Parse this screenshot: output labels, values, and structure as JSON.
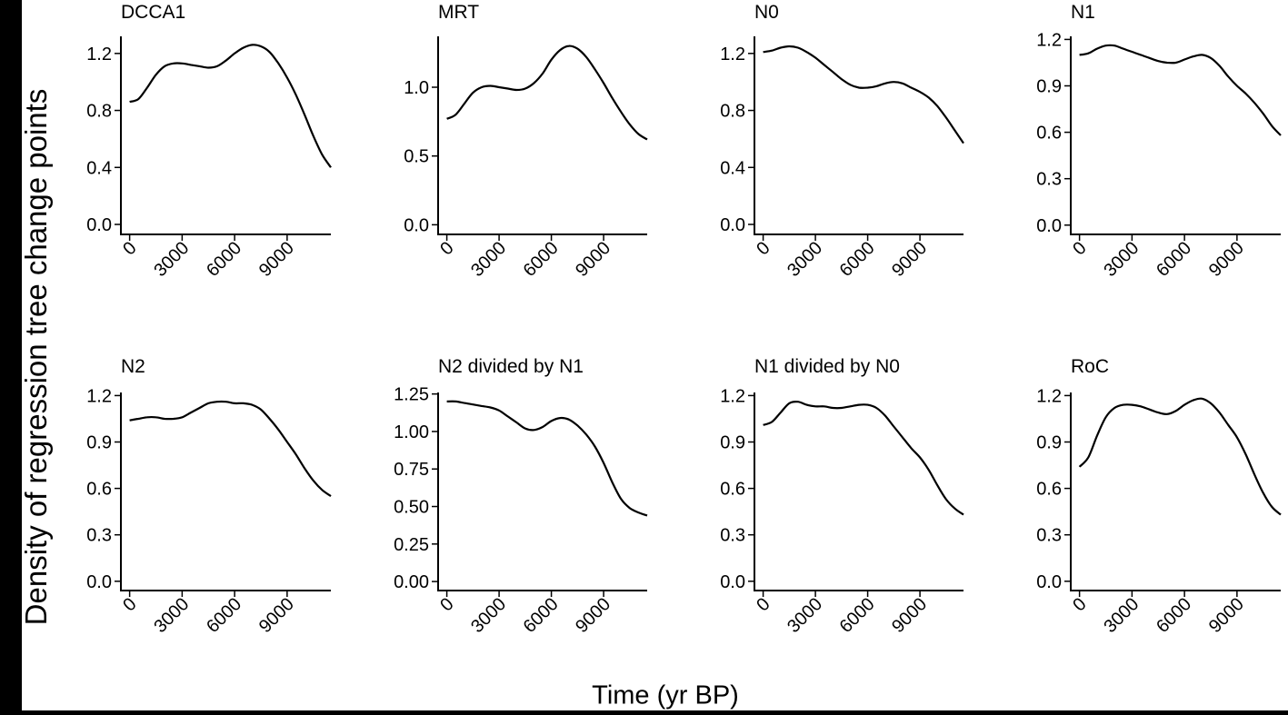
{
  "figure": {
    "ylabel": "Density of regression tree change points",
    "xlabel": "Time (yr BP)"
  },
  "colors": {
    "line": "#000000",
    "background": "#ffffff"
  },
  "chart_data": [
    {
      "type": "line",
      "title": "DCCA1",
      "xlim": [
        -500,
        11500
      ],
      "ylim": [
        -0.07,
        1.32
      ],
      "xticks": [
        0,
        3000,
        6000,
        9000
      ],
      "yticks": [
        0.0,
        0.4,
        0.8,
        1.2
      ],
      "ytick_labels": [
        "0.0",
        "0.4",
        "0.8",
        "1.2"
      ],
      "x": [
        0,
        500,
        1000,
        1500,
        2000,
        2500,
        3000,
        3500,
        4000,
        4500,
        5000,
        5500,
        6000,
        6500,
        7000,
        7500,
        8000,
        8500,
        9000,
        9500,
        10000,
        10500,
        11000,
        11500
      ],
      "y": [
        0.86,
        0.88,
        0.96,
        1.05,
        1.11,
        1.13,
        1.13,
        1.12,
        1.11,
        1.1,
        1.11,
        1.15,
        1.2,
        1.24,
        1.26,
        1.25,
        1.21,
        1.13,
        1.03,
        0.91,
        0.77,
        0.62,
        0.49,
        0.4
      ]
    },
    {
      "type": "line",
      "title": "MRT",
      "xlim": [
        -500,
        11500
      ],
      "ylim": [
        -0.07,
        1.37
      ],
      "xticks": [
        0,
        3000,
        6000,
        9000
      ],
      "yticks": [
        0.0,
        0.5,
        1.0
      ],
      "ytick_labels": [
        "0.0",
        "0.5",
        "1.0"
      ],
      "x": [
        0,
        500,
        1000,
        1500,
        2000,
        2500,
        3000,
        3500,
        4000,
        4500,
        5000,
        5500,
        6000,
        6500,
        7000,
        7500,
        8000,
        8500,
        9000,
        9500,
        10000,
        10500,
        11000,
        11500
      ],
      "y": [
        0.77,
        0.8,
        0.88,
        0.96,
        1.0,
        1.01,
        1.0,
        0.99,
        0.98,
        0.99,
        1.03,
        1.1,
        1.2,
        1.27,
        1.3,
        1.28,
        1.22,
        1.13,
        1.03,
        0.92,
        0.82,
        0.73,
        0.66,
        0.62
      ]
    },
    {
      "type": "line",
      "title": "N0",
      "xlim": [
        -500,
        11500
      ],
      "ylim": [
        -0.07,
        1.32
      ],
      "xticks": [
        0,
        3000,
        6000,
        9000
      ],
      "yticks": [
        0.0,
        0.4,
        0.8,
        1.2
      ],
      "ytick_labels": [
        "0.0",
        "0.4",
        "0.8",
        "1.2"
      ],
      "x": [
        0,
        500,
        1000,
        1500,
        2000,
        2500,
        3000,
        3500,
        4000,
        4500,
        5000,
        5500,
        6000,
        6500,
        7000,
        7500,
        8000,
        8500,
        9000,
        9500,
        10000,
        10500,
        11000,
        11500
      ],
      "y": [
        1.21,
        1.22,
        1.24,
        1.25,
        1.24,
        1.21,
        1.17,
        1.12,
        1.07,
        1.02,
        0.98,
        0.96,
        0.96,
        0.97,
        0.99,
        1.0,
        0.99,
        0.96,
        0.93,
        0.89,
        0.83,
        0.75,
        0.66,
        0.57
      ]
    },
    {
      "type": "line",
      "title": "N1",
      "xlim": [
        -500,
        11500
      ],
      "ylim": [
        -0.06,
        1.22
      ],
      "xticks": [
        0,
        3000,
        6000,
        9000
      ],
      "yticks": [
        0.0,
        0.3,
        0.6,
        0.9,
        1.2
      ],
      "ytick_labels": [
        "0.0",
        "0.3",
        "0.6",
        "0.9",
        "1.2"
      ],
      "x": [
        0,
        500,
        1000,
        1500,
        2000,
        2500,
        3000,
        3500,
        4000,
        4500,
        5000,
        5500,
        6000,
        6500,
        7000,
        7500,
        8000,
        8500,
        9000,
        9500,
        10000,
        10500,
        11000,
        11500
      ],
      "y": [
        1.1,
        1.11,
        1.14,
        1.16,
        1.16,
        1.14,
        1.12,
        1.1,
        1.08,
        1.06,
        1.05,
        1.05,
        1.07,
        1.09,
        1.1,
        1.08,
        1.03,
        0.96,
        0.9,
        0.85,
        0.79,
        0.72,
        0.64,
        0.58
      ]
    },
    {
      "type": "line",
      "title": "N2",
      "xlim": [
        -500,
        11500
      ],
      "ylim": [
        -0.06,
        1.22
      ],
      "xticks": [
        0,
        3000,
        6000,
        9000
      ],
      "yticks": [
        0.0,
        0.3,
        0.6,
        0.9,
        1.2
      ],
      "ytick_labels": [
        "0.0",
        "0.3",
        "0.6",
        "0.9",
        "1.2"
      ],
      "x": [
        0,
        500,
        1000,
        1500,
        2000,
        2500,
        3000,
        3500,
        4000,
        4500,
        5000,
        5500,
        6000,
        6500,
        7000,
        7500,
        8000,
        8500,
        9000,
        9500,
        10000,
        10500,
        11000,
        11500
      ],
      "y": [
        1.04,
        1.05,
        1.06,
        1.06,
        1.05,
        1.05,
        1.06,
        1.09,
        1.12,
        1.15,
        1.16,
        1.16,
        1.15,
        1.15,
        1.14,
        1.11,
        1.05,
        0.98,
        0.9,
        0.82,
        0.73,
        0.65,
        0.59,
        0.55
      ]
    },
    {
      "type": "line",
      "title": "N2 divided by N1",
      "xlim": [
        -500,
        11500
      ],
      "ylim": [
        -0.06,
        1.26
      ],
      "xticks": [
        0,
        3000,
        6000,
        9000
      ],
      "yticks": [
        0.0,
        0.25,
        0.5,
        0.75,
        1.0,
        1.25
      ],
      "ytick_labels": [
        "0.00",
        "0.25",
        "0.50",
        "0.75",
        "1.00",
        "1.25"
      ],
      "x": [
        0,
        500,
        1000,
        1500,
        2000,
        2500,
        3000,
        3500,
        4000,
        4500,
        5000,
        5500,
        6000,
        6500,
        7000,
        7500,
        8000,
        8500,
        9000,
        9500,
        10000,
        10500,
        11000,
        11500
      ],
      "y": [
        1.2,
        1.2,
        1.19,
        1.18,
        1.17,
        1.16,
        1.14,
        1.1,
        1.06,
        1.02,
        1.01,
        1.03,
        1.07,
        1.09,
        1.08,
        1.04,
        0.98,
        0.9,
        0.79,
        0.66,
        0.55,
        0.49,
        0.46,
        0.44
      ]
    },
    {
      "type": "line",
      "title": "N1 divided by N0",
      "xlim": [
        -500,
        11500
      ],
      "ylim": [
        -0.06,
        1.22
      ],
      "xticks": [
        0,
        3000,
        6000,
        9000
      ],
      "yticks": [
        0.0,
        0.3,
        0.6,
        0.9,
        1.2
      ],
      "ytick_labels": [
        "0.0",
        "0.3",
        "0.6",
        "0.9",
        "1.2"
      ],
      "x": [
        0,
        500,
        1000,
        1500,
        2000,
        2500,
        3000,
        3500,
        4000,
        4500,
        5000,
        5500,
        6000,
        6500,
        7000,
        7500,
        8000,
        8500,
        9000,
        9500,
        10000,
        10500,
        11000,
        11500
      ],
      "y": [
        1.01,
        1.03,
        1.09,
        1.15,
        1.16,
        1.14,
        1.13,
        1.13,
        1.12,
        1.12,
        1.13,
        1.14,
        1.14,
        1.12,
        1.07,
        1.0,
        0.93,
        0.86,
        0.8,
        0.72,
        0.62,
        0.53,
        0.47,
        0.43
      ]
    },
    {
      "type": "line",
      "title": "RoC",
      "xlim": [
        -500,
        11500
      ],
      "ylim": [
        -0.06,
        1.22
      ],
      "xticks": [
        0,
        3000,
        6000,
        9000
      ],
      "yticks": [
        0.0,
        0.3,
        0.6,
        0.9,
        1.2
      ],
      "ytick_labels": [
        "0.0",
        "0.3",
        "0.6",
        "0.9",
        "1.2"
      ],
      "x": [
        0,
        500,
        1000,
        1500,
        2000,
        2500,
        3000,
        3500,
        4000,
        4500,
        5000,
        5500,
        6000,
        6500,
        7000,
        7500,
        8000,
        8500,
        9000,
        9500,
        10000,
        10500,
        11000,
        11500
      ],
      "y": [
        0.74,
        0.8,
        0.94,
        1.06,
        1.12,
        1.14,
        1.14,
        1.13,
        1.11,
        1.09,
        1.08,
        1.1,
        1.14,
        1.17,
        1.18,
        1.15,
        1.09,
        1.01,
        0.93,
        0.82,
        0.69,
        0.57,
        0.48,
        0.43
      ]
    }
  ]
}
